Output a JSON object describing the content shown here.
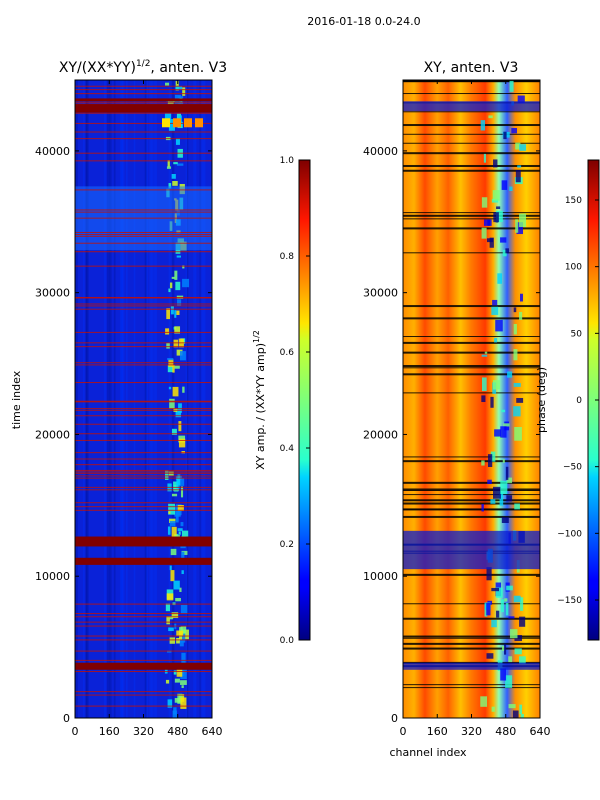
{
  "figure": {
    "suptitle": "2016-01-18 0.0-24.0"
  },
  "chart_data": [
    {
      "type": "heatmap",
      "title_main": "XY/(XX*YY)",
      "title_exp": "1/2",
      "title_tail": ", anten. V3",
      "xlabel": "",
      "ylabel": "time index",
      "x_range": [
        0,
        640
      ],
      "y_range": [
        0,
        45000
      ],
      "x_ticks": [
        0,
        160,
        320,
        480,
        640
      ],
      "y_ticks": [
        0,
        10000,
        20000,
        30000,
        40000
      ],
      "colorbar": {
        "range": [
          0.0,
          1.0
        ],
        "ticks": [
          "0.0",
          "0.2",
          "0.4",
          "0.6",
          "0.8",
          "1.0"
        ],
        "label": "XY amp. / (XX*YY amp)",
        "label_exp": "1/2"
      },
      "description_values": {
        "background_level": 0.1,
        "bright_band_channels": [
          420,
          520
        ],
        "flagged_rows_approx": [
          3600,
          11000,
          12400,
          39600,
          43000,
          43500
        ]
      }
    },
    {
      "type": "heatmap",
      "title": "XY, anten. V3",
      "xlabel": "channel index",
      "ylabel": "",
      "x_range": [
        0,
        640
      ],
      "y_range": [
        0,
        45000
      ],
      "x_ticks": [
        0,
        160,
        320,
        480,
        640
      ],
      "y_ticks": [
        0,
        10000,
        20000,
        30000,
        40000
      ],
      "colorbar": {
        "range": [
          -180,
          180
        ],
        "ticks": [
          "150",
          "100",
          "50",
          "0",
          "−50",
          "−100",
          "−150"
        ],
        "label": "phase (deg)"
      }
    }
  ]
}
